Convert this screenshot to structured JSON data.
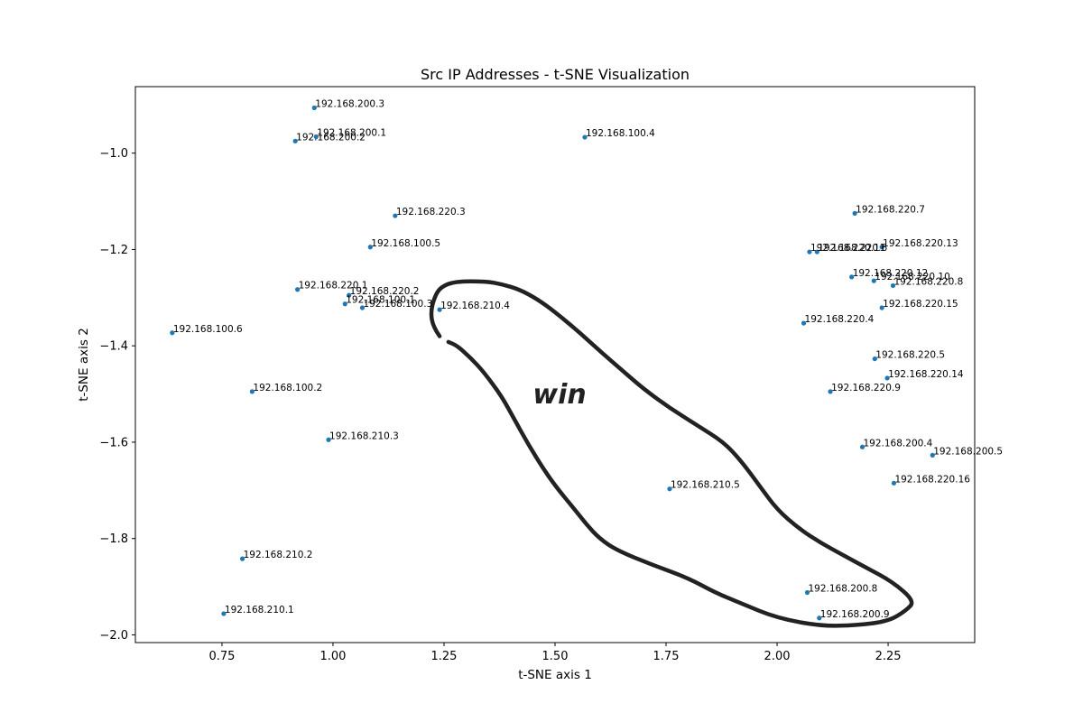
{
  "chart_data": {
    "type": "scatter",
    "title": "Src IP Addresses - t-SNE Visualization",
    "xlabel": "t-SNE axis 1",
    "ylabel": "t-SNE axis 2",
    "xlim": [
      0.555,
      2.445
    ],
    "ylim": [
      -2.016,
      -0.862
    ],
    "x_ticks": [
      0.75,
      1.0,
      1.25,
      1.5,
      1.75,
      2.0,
      2.25
    ],
    "x_tick_labels": [
      "0.75",
      "1.00",
      "1.25",
      "1.50",
      "1.75",
      "2.00",
      "2.25"
    ],
    "y_ticks": [
      -1.0,
      -1.2,
      -1.4,
      -1.6,
      -1.8,
      -2.0
    ],
    "y_tick_labels": [
      "−1.0",
      "−1.2",
      "−1.4",
      "−1.6",
      "−1.8",
      "−2.0"
    ],
    "grid": false,
    "marker_color": "#1f77b4",
    "points": [
      {
        "label": "192.168.200.3",
        "x": 0.958,
        "y": -0.906
      },
      {
        "label": "192.168.200.1",
        "x": 0.962,
        "y": -0.966
      },
      {
        "label": "192.168.200.2",
        "x": 0.915,
        "y": -0.975
      },
      {
        "label": "192.168.100.4",
        "x": 1.567,
        "y": -0.967
      },
      {
        "label": "192.168.220.3",
        "x": 1.14,
        "y": -1.13
      },
      {
        "label": "192.168.100.5",
        "x": 1.084,
        "y": -1.195
      },
      {
        "label": "192.168.220.1",
        "x": 0.92,
        "y": -1.283
      },
      {
        "label": "192.168.220.2",
        "x": 1.036,
        "y": -1.295
      },
      {
        "label": "192.168.100.1",
        "x": 1.027,
        "y": -1.313
      },
      {
        "label": "192.168.100.3",
        "x": 1.066,
        "y": -1.321
      },
      {
        "label": "192.168.210.4",
        "x": 1.24,
        "y": -1.325
      },
      {
        "label": "192.168.100.6",
        "x": 0.638,
        "y": -1.373
      },
      {
        "label": "192.168.100.2",
        "x": 0.818,
        "y": -1.495
      },
      {
        "label": "192.168.210.3",
        "x": 0.99,
        "y": -1.595
      },
      {
        "label": "192.168.210.5",
        "x": 1.758,
        "y": -1.697
      },
      {
        "label": "192.168.210.2",
        "x": 0.796,
        "y": -1.842
      },
      {
        "label": "192.168.210.1",
        "x": 0.754,
        "y": -1.956
      },
      {
        "label": "192.168.220.7",
        "x": 2.175,
        "y": -1.125
      },
      {
        "label": "192.168.220.13",
        "x": 2.236,
        "y": -1.195
      },
      {
        "label": "192.168.220.11",
        "x": 2.073,
        "y": -1.205
      },
      {
        "label": "192.168.220.6",
        "x": 2.09,
        "y": -1.205
      },
      {
        "label": "192.168.220.12",
        "x": 2.168,
        "y": -1.257
      },
      {
        "label": "192.168.220.10",
        "x": 2.218,
        "y": -1.265
      },
      {
        "label": "192.168.220.8",
        "x": 2.261,
        "y": -1.275
      },
      {
        "label": "192.168.220.15",
        "x": 2.236,
        "y": -1.321
      },
      {
        "label": "192.168.220.4",
        "x": 2.06,
        "y": -1.353
      },
      {
        "label": "192.168.220.5",
        "x": 2.22,
        "y": -1.427
      },
      {
        "label": "192.168.220.14",
        "x": 2.248,
        "y": -1.467
      },
      {
        "label": "192.168.220.9",
        "x": 2.12,
        "y": -1.495
      },
      {
        "label": "192.168.200.4",
        "x": 2.192,
        "y": -1.61
      },
      {
        "label": "192.168.200.5",
        "x": 2.35,
        "y": -1.627
      },
      {
        "label": "192.168.220.16",
        "x": 2.263,
        "y": -1.685
      },
      {
        "label": "192.168.200.8",
        "x": 2.068,
        "y": -1.912
      },
      {
        "label": "192.168.200.9",
        "x": 2.095,
        "y": -1.965
      }
    ],
    "annotation": {
      "text": "win",
      "shape": "hand-drawn closed outline",
      "color": "#222222",
      "outline_path": [
        [
          1.24,
          -1.38
        ],
        [
          1.225,
          -1.36
        ],
        [
          1.22,
          -1.33
        ],
        [
          1.228,
          -1.3
        ],
        [
          1.242,
          -1.278
        ],
        [
          1.275,
          -1.266
        ],
        [
          1.345,
          -1.266
        ],
        [
          1.38,
          -1.272
        ],
        [
          1.42,
          -1.283
        ],
        [
          1.46,
          -1.303
        ],
        [
          1.5,
          -1.33
        ],
        [
          1.55,
          -1.368
        ],
        [
          1.6,
          -1.41
        ],
        [
          1.65,
          -1.45
        ],
        [
          1.7,
          -1.49
        ],
        [
          1.76,
          -1.53
        ],
        [
          1.82,
          -1.565
        ],
        [
          1.88,
          -1.6
        ],
        [
          1.92,
          -1.64
        ],
        [
          1.96,
          -1.69
        ],
        [
          2.0,
          -1.74
        ],
        [
          2.05,
          -1.78
        ],
        [
          2.1,
          -1.81
        ],
        [
          2.15,
          -1.835
        ],
        [
          2.2,
          -1.86
        ],
        [
          2.26,
          -1.89
        ],
        [
          2.31,
          -1.93
        ],
        [
          2.29,
          -1.95
        ],
        [
          2.25,
          -1.972
        ],
        [
          2.18,
          -1.98
        ],
        [
          2.1,
          -1.982
        ],
        [
          2.0,
          -1.965
        ],
        [
          1.92,
          -1.935
        ],
        [
          1.86,
          -1.912
        ],
        [
          1.8,
          -1.882
        ],
        [
          1.72,
          -1.855
        ],
        [
          1.64,
          -1.825
        ],
        [
          1.6,
          -1.8
        ],
        [
          1.57,
          -1.77
        ],
        [
          1.54,
          -1.735
        ],
        [
          1.5,
          -1.69
        ],
        [
          1.47,
          -1.65
        ],
        [
          1.44,
          -1.605
        ],
        [
          1.41,
          -1.555
        ],
        [
          1.38,
          -1.505
        ],
        [
          1.34,
          -1.455
        ],
        [
          1.31,
          -1.425
        ],
        [
          1.28,
          -1.4
        ],
        [
          1.26,
          -1.392
        ]
      ],
      "text_position": [
        1.45,
        -1.52
      ]
    }
  }
}
